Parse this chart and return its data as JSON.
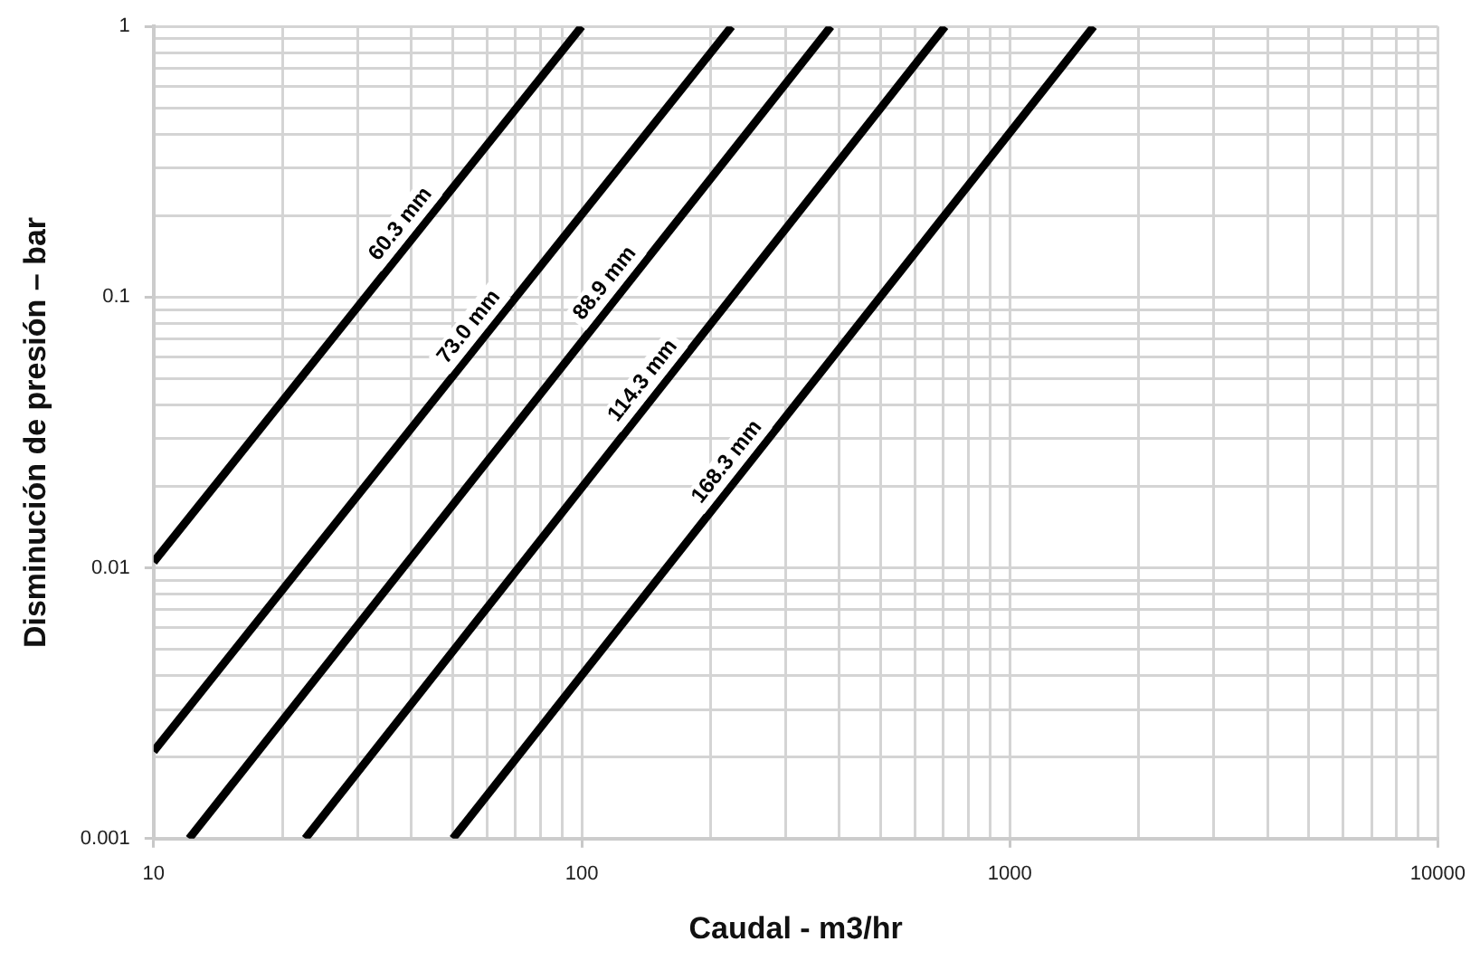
{
  "chart_data": {
    "type": "line",
    "xlabel": "Caudal - m3/hr",
    "ylabel": "Disminución de presión – bar",
    "log": "xy",
    "grid": true,
    "legend": false,
    "marker": "none",
    "line_style": "solid",
    "xlim": [
      10,
      10000
    ],
    "ylim": [
      0.001,
      1
    ],
    "xticks": [
      10,
      {
        "value": 20,
        "label": null
      },
      {
        "value": 30,
        "label": null
      },
      {
        "value": 40,
        "label": null
      },
      {
        "value": 50,
        "label": null
      },
      {
        "value": 60,
        "label": null
      },
      {
        "value": 70,
        "label": null
      },
      {
        "value": 80,
        "label": null
      },
      {
        "value": 90,
        "label": null
      },
      100,
      {
        "value": 200,
        "label": null
      },
      {
        "value": 300,
        "label": null
      },
      {
        "value": 400,
        "label": null
      },
      {
        "value": 500,
        "label": null
      },
      {
        "value": 600,
        "label": null
      },
      {
        "value": 700,
        "label": null
      },
      {
        "value": 800,
        "label": null
      },
      {
        "value": 900,
        "label": null
      },
      1000,
      {
        "value": 2000,
        "label": null
      },
      {
        "value": 3000,
        "label": null
      },
      {
        "value": 4000,
        "label": null
      },
      {
        "value": 5000,
        "label": null
      },
      {
        "value": 6000,
        "label": null
      },
      {
        "value": 7000,
        "label": null
      },
      {
        "value": 8000,
        "label": null
      },
      {
        "value": 9000,
        "label": null
      },
      10000
    ],
    "yticks": [
      0.001,
      {
        "value": 0.002,
        "label": null
      },
      {
        "value": 0.003,
        "label": null
      },
      {
        "value": 0.004,
        "label": null
      },
      {
        "value": 0.005,
        "label": null
      },
      {
        "value": 0.006,
        "label": null
      },
      {
        "value": 0.007,
        "label": null
      },
      {
        "value": 0.008,
        "label": null
      },
      {
        "value": 0.009,
        "label": null
      },
      0.01,
      {
        "value": 0.02,
        "label": null
      },
      {
        "value": 0.03,
        "label": null
      },
      {
        "value": 0.04,
        "label": null
      },
      {
        "value": 0.05,
        "label": null
      },
      {
        "value": 0.06,
        "label": null
      },
      {
        "value": 0.07,
        "label": null
      },
      {
        "value": 0.08,
        "label": null
      },
      {
        "value": 0.09,
        "label": null
      },
      0.1,
      {
        "value": 0.2,
        "label": null
      },
      {
        "value": 0.3,
        "label": null
      },
      {
        "value": 0.4,
        "label": null
      },
      {
        "value": 0.5,
        "label": null
      },
      {
        "value": 0.6,
        "label": null
      },
      {
        "value": 0.7,
        "label": null
      },
      {
        "value": 0.8,
        "label": null
      },
      {
        "value": 0.9,
        "label": null
      },
      1
    ],
    "series": [
      {
        "name": "60.3 mm",
        "color": "#000000",
        "x": [
          10,
          100
        ],
        "values": [
          0.0105,
          1
        ]
      },
      {
        "name": "73.0 mm",
        "color": "#000000",
        "x": [
          10,
          224
        ],
        "values": [
          0.0021,
          1
        ]
      },
      {
        "name": "88.9 mm",
        "color": "#000000",
        "x": [
          12.1,
          382
        ],
        "values": [
          0.001,
          1
        ]
      },
      {
        "name": "114.3 mm",
        "color": "#000000",
        "x": [
          22.6,
          706
        ],
        "values": [
          0.001,
          1
        ]
      },
      {
        "name": "168.3 mm",
        "color": "#000000",
        "x": [
          50,
          1570
        ],
        "values": [
          0.001,
          1
        ]
      }
    ]
  }
}
